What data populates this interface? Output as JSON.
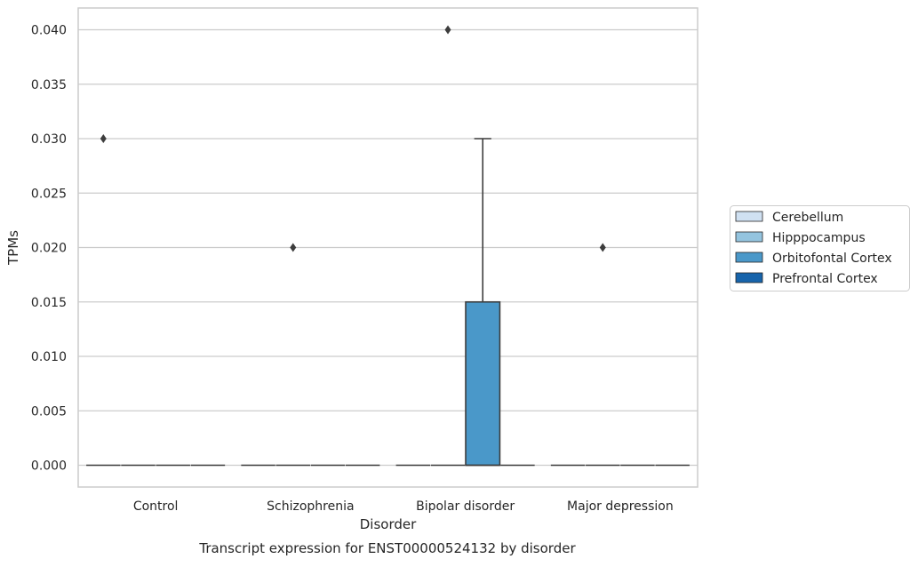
{
  "chart_data": {
    "type": "box",
    "title": "Transcript expression for ENST00000524132 by disorder",
    "xlabel": "Disorder",
    "ylabel": "TPMs",
    "ylim": [
      -0.002,
      0.042
    ],
    "yticks": [
      0.0,
      0.005,
      0.01,
      0.015,
      0.02,
      0.025,
      0.03,
      0.035,
      0.04
    ],
    "ytick_labels": [
      "0.000",
      "0.005",
      "0.010",
      "0.015",
      "0.020",
      "0.025",
      "0.030",
      "0.035",
      "0.040"
    ],
    "categories": [
      "Control",
      "Schizophrenia",
      "Bipolar disorder",
      "Major depression"
    ],
    "grid": true,
    "legend": {
      "placement": "right",
      "entries": [
        {
          "name": "Cerebellum",
          "color": "#d0e1f2"
        },
        {
          "name": "Hipppocampus",
          "color": "#94c4df"
        },
        {
          "name": "Orbitofontal Cortex",
          "color": "#4a98c9"
        },
        {
          "name": "Prefrontal Cortex",
          "color": "#1764ab"
        }
      ]
    },
    "series": [
      {
        "name": "Cerebellum",
        "boxes": [
          {
            "q1": 0,
            "median": 0,
            "q3": 0,
            "whisker_low": 0,
            "whisker_high": 0,
            "outliers": [
              0.03
            ]
          },
          {
            "q1": 0,
            "median": 0,
            "q3": 0,
            "whisker_low": 0,
            "whisker_high": 0,
            "outliers": []
          },
          {
            "q1": 0,
            "median": 0,
            "q3": 0,
            "whisker_low": 0,
            "whisker_high": 0,
            "outliers": []
          },
          {
            "q1": 0,
            "median": 0,
            "q3": 0,
            "whisker_low": 0,
            "whisker_high": 0,
            "outliers": []
          }
        ]
      },
      {
        "name": "Hipppocampus",
        "boxes": [
          {
            "q1": 0,
            "median": 0,
            "q3": 0,
            "whisker_low": 0,
            "whisker_high": 0,
            "outliers": []
          },
          {
            "q1": 0,
            "median": 0,
            "q3": 0,
            "whisker_low": 0,
            "whisker_high": 0,
            "outliers": [
              0.02
            ]
          },
          {
            "q1": 0,
            "median": 0,
            "q3": 0,
            "whisker_low": 0,
            "whisker_high": 0,
            "outliers": [
              0.04
            ]
          },
          {
            "q1": 0,
            "median": 0,
            "q3": 0,
            "whisker_low": 0,
            "whisker_high": 0,
            "outliers": [
              0.02
            ]
          }
        ]
      },
      {
        "name": "Orbitofontal Cortex",
        "boxes": [
          {
            "q1": 0,
            "median": 0,
            "q3": 0,
            "whisker_low": 0,
            "whisker_high": 0,
            "outliers": []
          },
          {
            "q1": 0,
            "median": 0,
            "q3": 0,
            "whisker_low": 0,
            "whisker_high": 0,
            "outliers": []
          },
          {
            "q1": 0,
            "median": 0,
            "q3": 0.015,
            "whisker_low": 0,
            "whisker_high": 0.03,
            "outliers": []
          },
          {
            "q1": 0,
            "median": 0,
            "q3": 0,
            "whisker_low": 0,
            "whisker_high": 0,
            "outliers": []
          }
        ]
      },
      {
        "name": "Prefrontal Cortex",
        "boxes": [
          {
            "q1": 0,
            "median": 0,
            "q3": 0,
            "whisker_low": 0,
            "whisker_high": 0,
            "outliers": []
          },
          {
            "q1": 0,
            "median": 0,
            "q3": 0,
            "whisker_low": 0,
            "whisker_high": 0,
            "outliers": []
          },
          {
            "q1": 0,
            "median": 0,
            "q3": 0,
            "whisker_low": 0,
            "whisker_high": 0,
            "outliers": []
          },
          {
            "q1": 0,
            "median": 0,
            "q3": 0,
            "whisker_low": 0,
            "whisker_high": 0,
            "outliers": []
          }
        ]
      }
    ]
  }
}
